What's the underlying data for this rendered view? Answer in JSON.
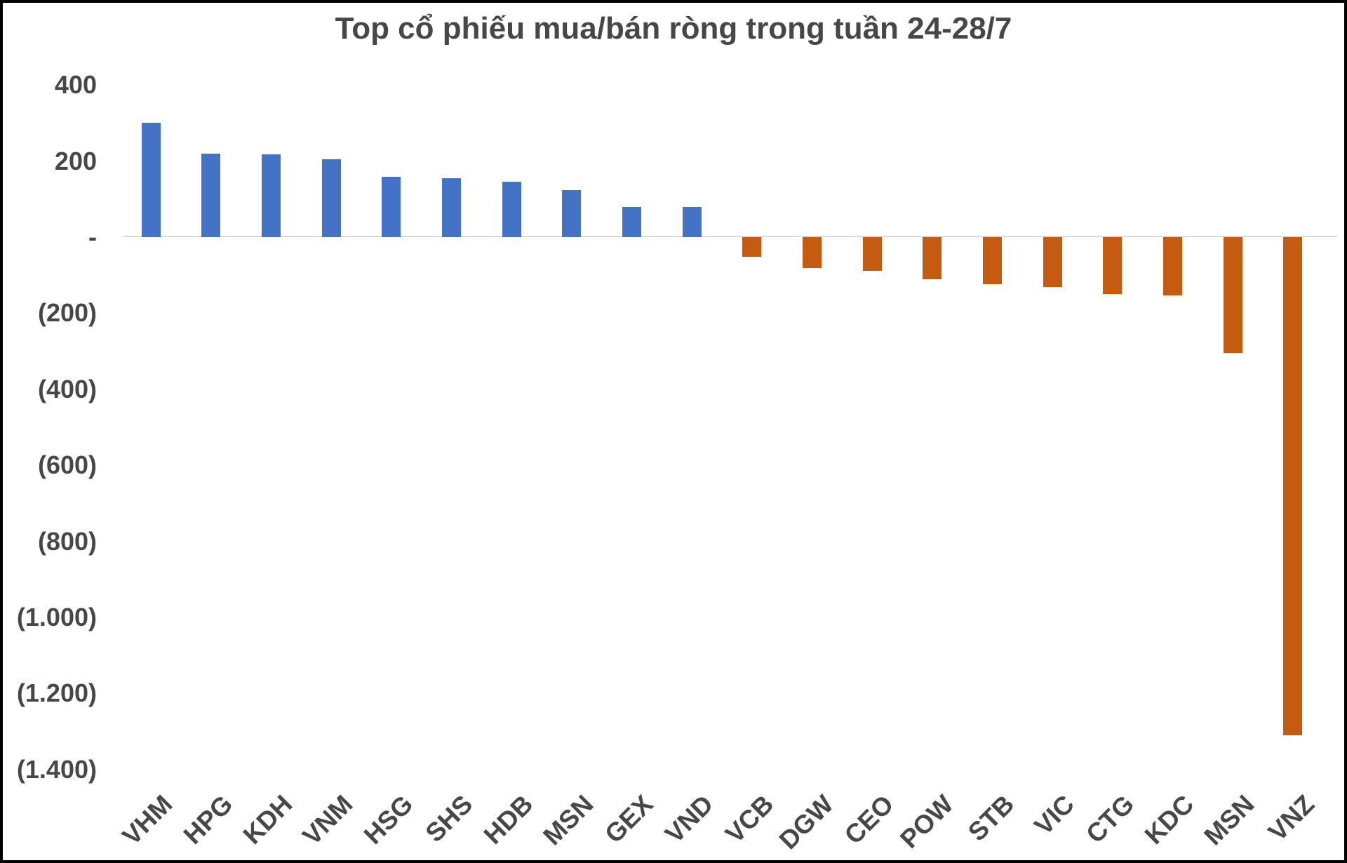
{
  "chart_data": {
    "type": "bar",
    "title": "Top cổ phiếu mua/bán ròng trong tuần 24-28/7",
    "categories": [
      "VHM",
      "HPG",
      "KDH",
      "VNM",
      "HSG",
      "SHS",
      "HDB",
      "MSN",
      "GEX",
      "VND",
      "VCB",
      "DGW",
      "CEO",
      "POW",
      "STB",
      "VIC",
      "CTG",
      "KDC",
      "MSN",
      "VNZ"
    ],
    "values": [
      300,
      220,
      218,
      205,
      158,
      155,
      145,
      123,
      80,
      80,
      -52,
      -82,
      -88,
      -110,
      -123,
      -131,
      -150,
      -154,
      -305,
      -1310
    ],
    "xlabel": "",
    "ylabel": "",
    "ylim": [
      -1400,
      400
    ],
    "y_ticks": [
      {
        "label": "400",
        "value": 400
      },
      {
        "label": "200",
        "value": 200
      },
      {
        "label": "-",
        "value": 0
      },
      {
        "label": "(200)",
        "value": -200
      },
      {
        "label": "(400)",
        "value": -400
      },
      {
        "label": "(600)",
        "value": -600
      },
      {
        "label": "(800)",
        "value": -800
      },
      {
        "label": "(1.000)",
        "value": -1000
      },
      {
        "label": "(1.200)",
        "value": -1200
      },
      {
        "label": "(1.400)",
        "value": -1400
      }
    ],
    "grid": "off",
    "legend": "none",
    "colors": {
      "positive_bar": "#4472C4",
      "negative_bar": "#C55A11",
      "axis_line": "#D9D9D9",
      "text": "#474747",
      "background": "#FFFFFF",
      "border": "#000000"
    }
  }
}
